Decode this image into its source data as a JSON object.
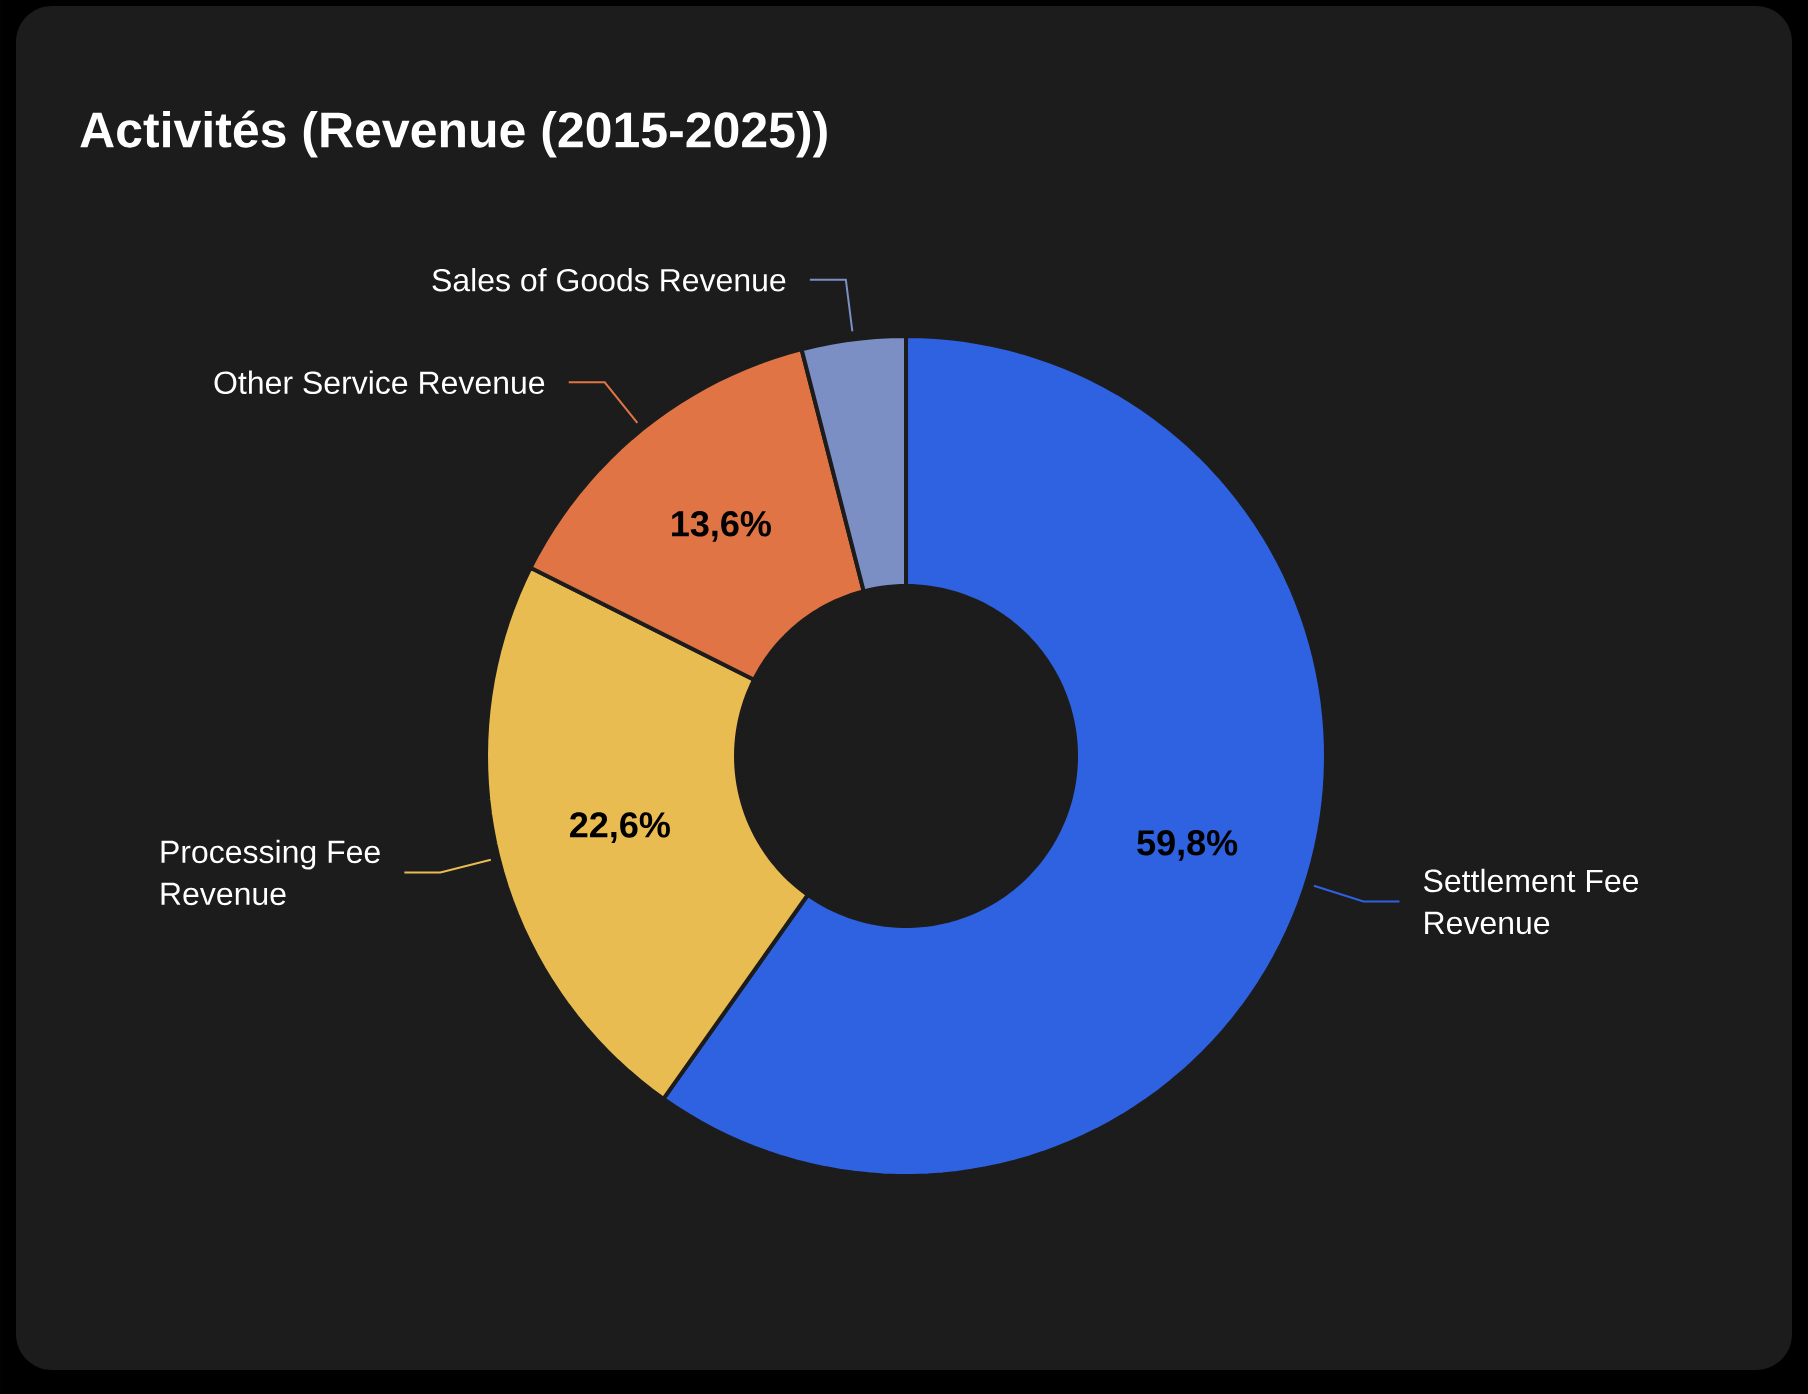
{
  "chart_data": {
    "type": "donut",
    "title": "Activités (Revenue (2015-2025))",
    "categories": [
      "Settlement Fee Revenue",
      "Processing Fee Revenue",
      "Other Service Revenue",
      "Sales of Goods Revenue"
    ],
    "values": [
      59.8,
      22.6,
      13.6,
      4.0
    ],
    "colors": [
      "#2f62e0",
      "#e9bc52",
      "#e07445",
      "#7b8fc4"
    ],
    "value_labels": [
      "59,8%",
      "22,6%",
      "13,6%",
      null
    ]
  }
}
